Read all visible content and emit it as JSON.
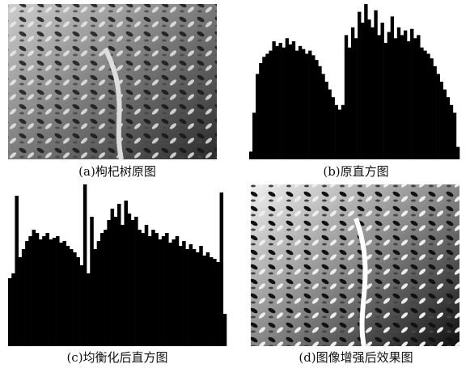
{
  "panels": [
    {
      "type": "image",
      "caption": "(a)枸杞树原图"
    },
    {
      "type": "histogram",
      "caption": "(b)原直方图",
      "ylim": [
        0,
        100
      ],
      "values": [
        5,
        30,
        55,
        62,
        66,
        68,
        70,
        76,
        73,
        75,
        72,
        78,
        74,
        76,
        70,
        73,
        71,
        68,
        70,
        67,
        64,
        60,
        55,
        50,
        45,
        40,
        35,
        32,
        35,
        80,
        72,
        85,
        78,
        95,
        88,
        100,
        90,
        85,
        96,
        80,
        88,
        75,
        82,
        92,
        78,
        85,
        80,
        83,
        76,
        84,
        78,
        80,
        72,
        70,
        68,
        65,
        60,
        55,
        50,
        45,
        40,
        35,
        30,
        8
      ]
    },
    {
      "type": "histogram",
      "caption": "(c)均衡化后直方图",
      "ylim": [
        0,
        100
      ],
      "values": [
        42,
        45,
        93,
        55,
        60,
        65,
        68,
        72,
        70,
        66,
        68,
        70,
        66,
        67,
        68,
        64,
        65,
        62,
        60,
        58,
        55,
        50,
        100,
        45,
        80,
        60,
        65,
        70,
        72,
        78,
        85,
        80,
        88,
        75,
        90,
        82,
        78,
        80,
        72,
        70,
        75,
        68,
        72,
        70,
        66,
        68,
        70,
        64,
        66,
        68,
        62,
        65,
        60,
        63,
        60,
        58,
        62,
        56,
        58,
        55,
        54,
        52,
        95,
        20
      ]
    },
    {
      "type": "image",
      "caption": "(d)图像增强后效果图"
    }
  ]
}
